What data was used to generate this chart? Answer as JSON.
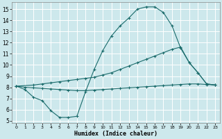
{
  "xlabel": "Humidex (Indice chaleur)",
  "background_color": "#cde8ec",
  "grid_color": "#ffffff",
  "line_color": "#1a6b6b",
  "xlim": [
    -0.5,
    23.5
  ],
  "ylim": [
    4.8,
    15.6
  ],
  "xticks": [
    0,
    1,
    2,
    3,
    4,
    5,
    6,
    7,
    8,
    9,
    10,
    11,
    12,
    13,
    14,
    15,
    16,
    17,
    18,
    19,
    20,
    21,
    22,
    23
  ],
  "yticks": [
    5,
    6,
    7,
    8,
    9,
    10,
    11,
    12,
    13,
    14,
    15
  ],
  "curve1_x": [
    0,
    1,
    2,
    3,
    4,
    5,
    6,
    7,
    8,
    9,
    10,
    11,
    12,
    13,
    14,
    15,
    16,
    17,
    18,
    19,
    20,
    21,
    22,
    23
  ],
  "curve1_y": [
    8.1,
    7.8,
    7.1,
    6.8,
    5.9,
    5.3,
    5.3,
    5.4,
    7.6,
    9.6,
    11.3,
    12.6,
    13.5,
    14.2,
    15.0,
    15.2,
    15.2,
    14.7,
    13.5,
    11.5,
    10.2,
    9.3,
    8.3,
    8.2
  ],
  "curve2_x": [
    0,
    2,
    3,
    4,
    5,
    6,
    7,
    8,
    9,
    10,
    11,
    12,
    13,
    14,
    15,
    16,
    17,
    18,
    19,
    20,
    21,
    22,
    23
  ],
  "curve2_y": [
    8.1,
    8.2,
    8.3,
    8.4,
    8.5,
    8.6,
    8.7,
    8.8,
    8.9,
    9.1,
    9.3,
    9.6,
    9.9,
    10.2,
    10.5,
    10.8,
    11.1,
    11.4,
    11.6,
    10.2,
    9.3,
    8.3,
    8.2
  ],
  "curve3_x": [
    0,
    1,
    2,
    3,
    4,
    5,
    6,
    7,
    8,
    9,
    10,
    11,
    12,
    13,
    14,
    15,
    16,
    17,
    18,
    19,
    20,
    21,
    22,
    23
  ],
  "curve3_y": [
    8.1,
    8.0,
    7.95,
    7.9,
    7.85,
    7.8,
    7.75,
    7.7,
    7.7,
    7.75,
    7.8,
    7.85,
    7.9,
    7.95,
    8.0,
    8.05,
    8.1,
    8.15,
    8.2,
    8.25,
    8.3,
    8.3,
    8.25,
    8.2
  ]
}
